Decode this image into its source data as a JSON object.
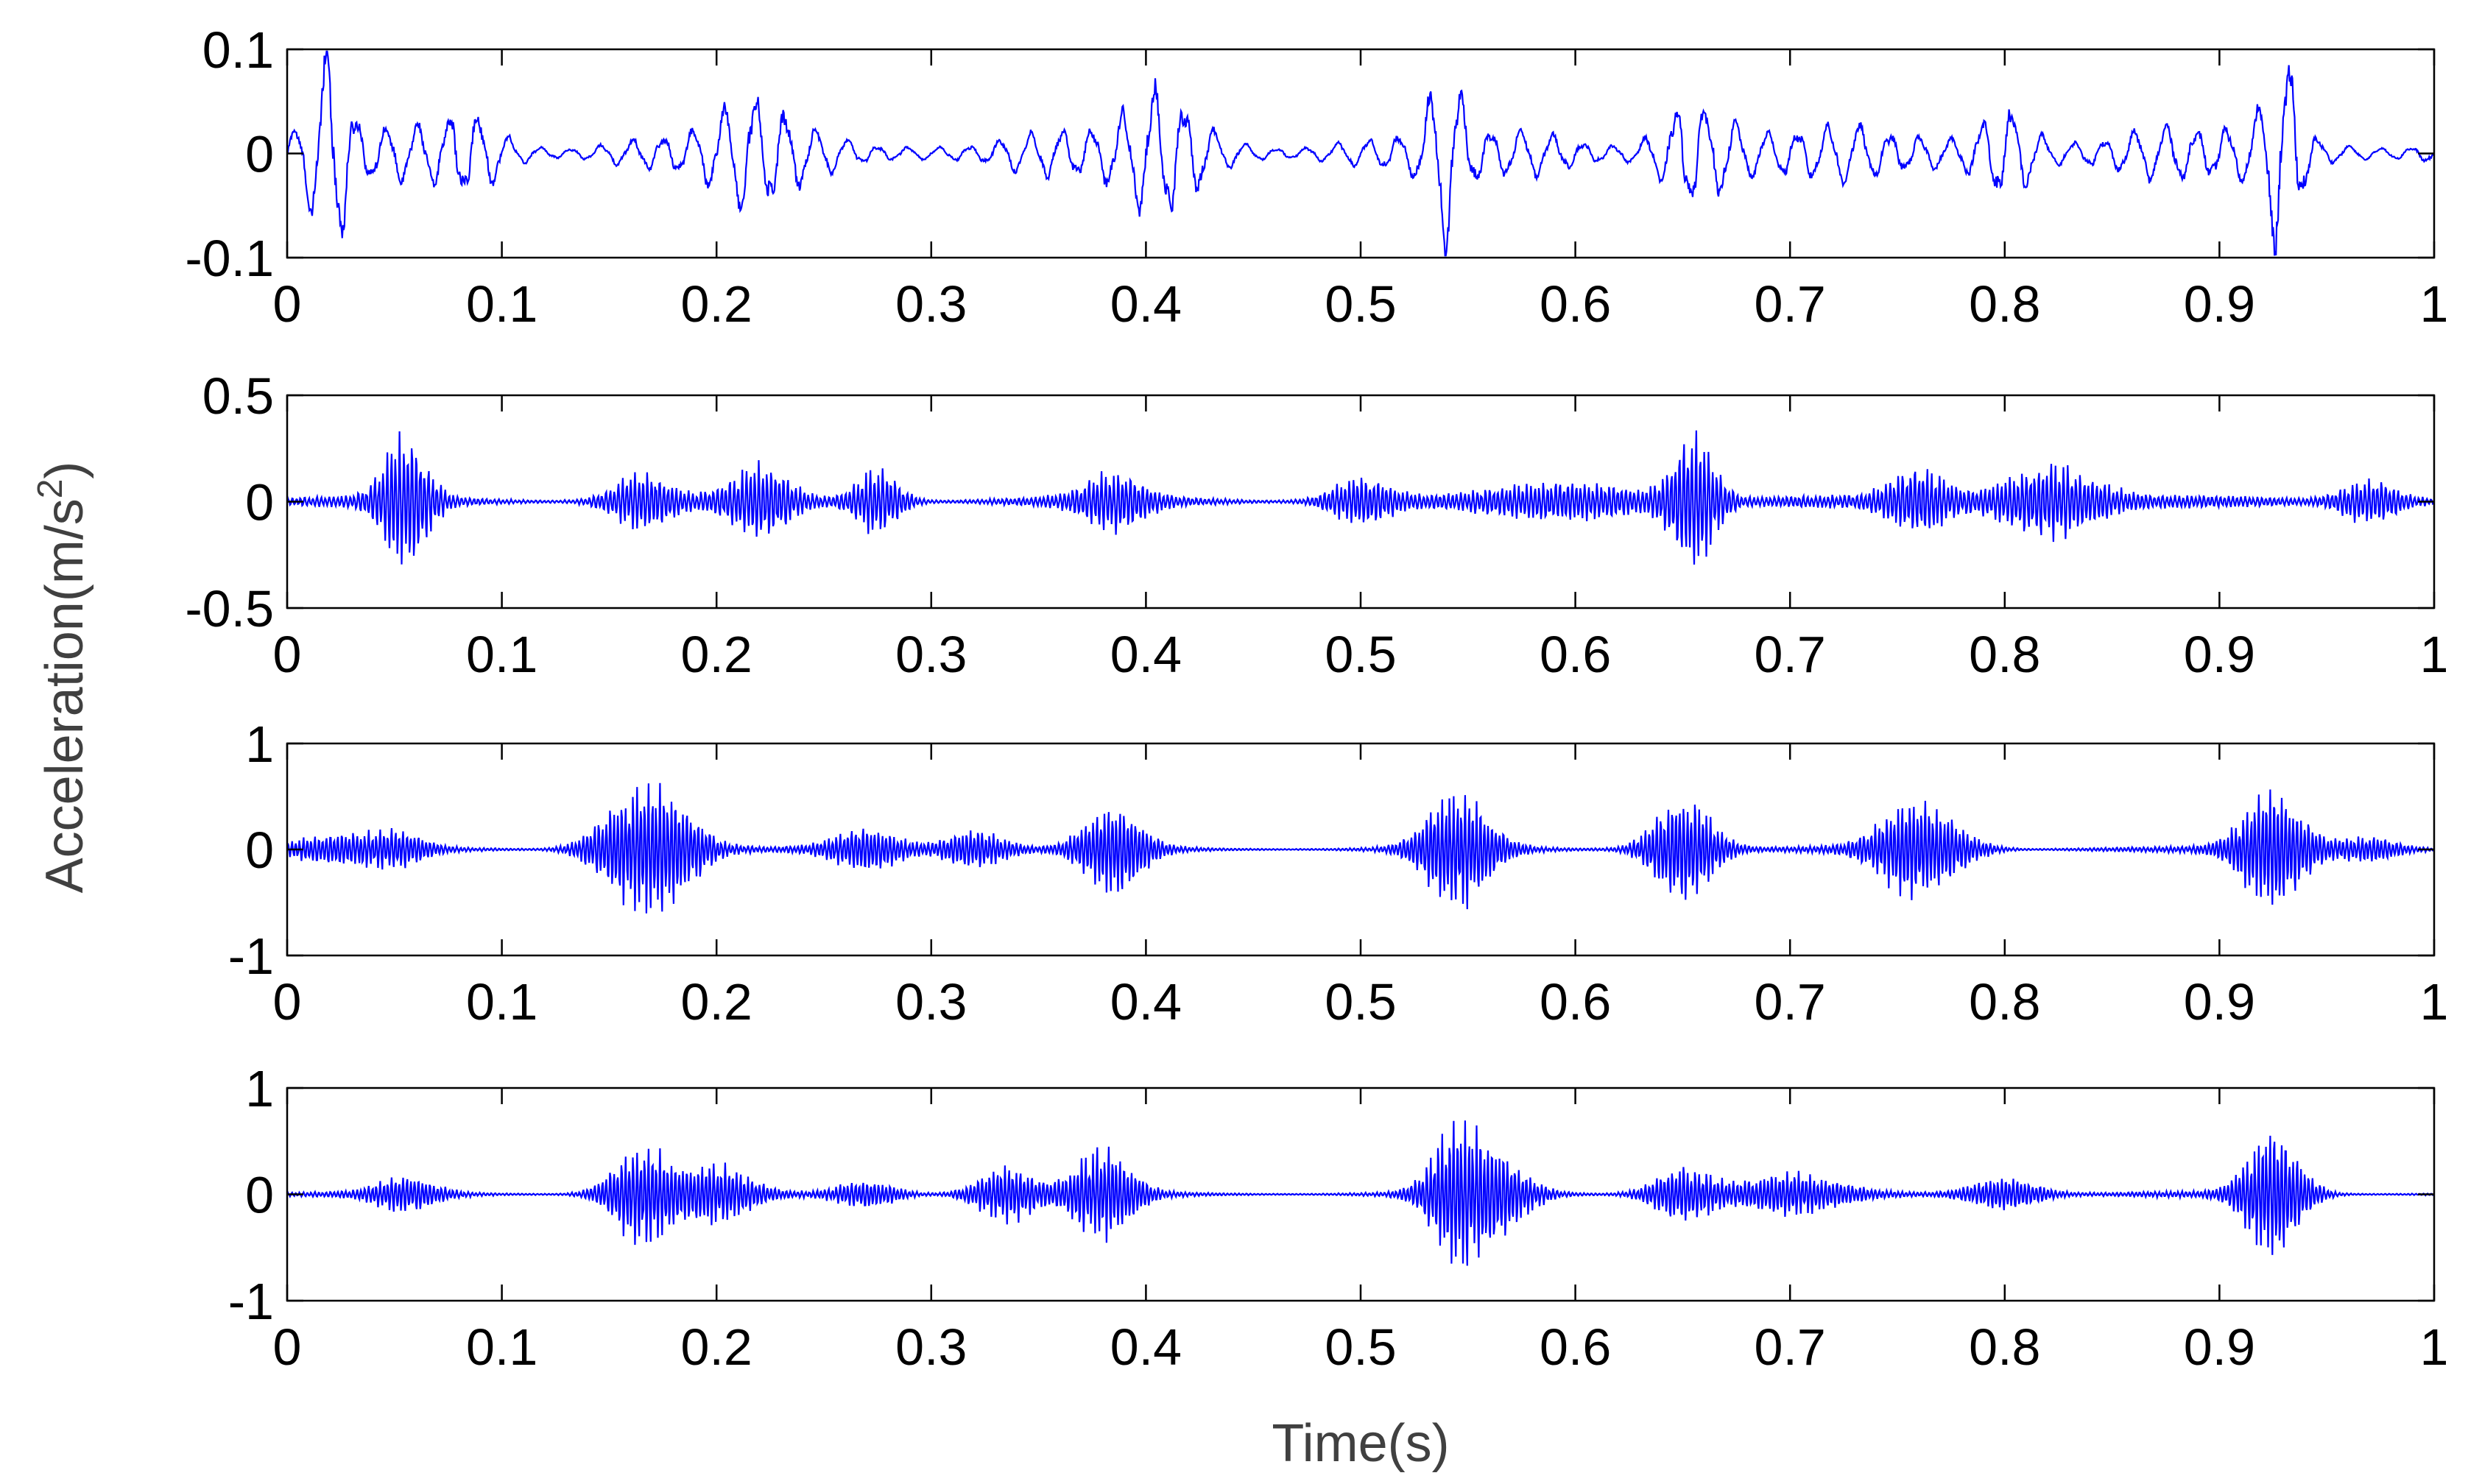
{
  "figure": {
    "ylabel": "Acceleration(m/s",
    "ylabel_sup": "2",
    "ylabel_close": ")",
    "xlabel": "Time(s)"
  },
  "colors": {
    "signal": "#0000ff",
    "axes": "#000000",
    "label": "#404040"
  },
  "chart_data": [
    {
      "type": "line",
      "xlim": [
        0,
        1
      ],
      "ylim": [
        -0.1,
        0.1
      ],
      "xticks": [
        "0",
        "0.1",
        "0.2",
        "0.3",
        "0.4",
        "0.5",
        "0.6",
        "0.7",
        "0.8",
        "0.9",
        "1"
      ],
      "yticks": [
        {
          "v": 0.1,
          "label": "0.1"
        },
        {
          "v": 0,
          "label": "0"
        },
        {
          "v": -0.1,
          "label": "-0.1"
        }
      ],
      "carrier": 70,
      "base": 0.03,
      "bursts": [
        {
          "t": 0.02,
          "a": 0.09,
          "w": 0.007
        },
        {
          "t": 0.085,
          "a": 0.035,
          "w": 0.01
        },
        {
          "t": 0.22,
          "a": 0.04,
          "w": 0.012
        },
        {
          "t": 0.41,
          "a": 0.055,
          "w": 0.012
        },
        {
          "t": 0.54,
          "a": 0.07,
          "w": 0.006
        },
        {
          "t": 0.655,
          "a": 0.055,
          "w": 0.012
        },
        {
          "t": 0.8,
          "a": 0.05,
          "w": 0.01
        },
        {
          "t": 0.93,
          "a": 0.095,
          "w": 0.007
        }
      ]
    },
    {
      "type": "line",
      "xlim": [
        0,
        1
      ],
      "ylim": [
        -0.5,
        0.5
      ],
      "xticks": [
        "0",
        "0.1",
        "0.2",
        "0.3",
        "0.4",
        "0.5",
        "0.6",
        "0.7",
        "0.8",
        "0.9",
        "1"
      ],
      "yticks": [
        {
          "v": 0.5,
          "label": "0.5"
        },
        {
          "v": 0,
          "label": "0"
        },
        {
          "v": -0.5,
          "label": "-0.5"
        }
      ],
      "carrier": 520,
      "base": 0.03,
      "bursts": [
        {
          "t": 0.055,
          "a": 0.3,
          "w": 0.009
        },
        {
          "t": 0.165,
          "a": 0.12,
          "w": 0.012
        },
        {
          "t": 0.22,
          "a": 0.15,
          "w": 0.012
        },
        {
          "t": 0.275,
          "a": 0.15,
          "w": 0.009
        },
        {
          "t": 0.385,
          "a": 0.12,
          "w": 0.012
        },
        {
          "t": 0.5,
          "a": 0.1,
          "w": 0.012
        },
        {
          "t": 0.6,
          "a": 0.08,
          "w": 0.03
        },
        {
          "t": 0.655,
          "a": 0.3,
          "w": 0.009
        },
        {
          "t": 0.76,
          "a": 0.14,
          "w": 0.012
        },
        {
          "t": 0.82,
          "a": 0.17,
          "w": 0.02
        },
        {
          "t": 0.97,
          "a": 0.1,
          "w": 0.012
        }
      ]
    },
    {
      "type": "line",
      "xlim": [
        0,
        1
      ],
      "ylim": [
        -1,
        1
      ],
      "xticks": [
        "0",
        "0.1",
        "0.2",
        "0.3",
        "0.4",
        "0.5",
        "0.6",
        "0.7",
        "0.8",
        "0.9",
        "1"
      ],
      "yticks": [
        {
          "v": 1,
          "label": "1"
        },
        {
          "v": 0,
          "label": "0"
        },
        {
          "v": -1,
          "label": "-1"
        }
      ],
      "carrier": 560,
      "base": 0.03,
      "bursts": [
        {
          "t": 0.02,
          "a": 0.12,
          "w": 0.015
        },
        {
          "t": 0.05,
          "a": 0.15,
          "w": 0.012
        },
        {
          "t": 0.16,
          "a": 0.45,
          "w": 0.014
        },
        {
          "t": 0.18,
          "a": 0.35,
          "w": 0.012
        },
        {
          "t": 0.27,
          "a": 0.2,
          "w": 0.014
        },
        {
          "t": 0.32,
          "a": 0.18,
          "w": 0.012
        },
        {
          "t": 0.385,
          "a": 0.4,
          "w": 0.012
        },
        {
          "t": 0.545,
          "a": 0.55,
          "w": 0.013
        },
        {
          "t": 0.65,
          "a": 0.5,
          "w": 0.012
        },
        {
          "t": 0.76,
          "a": 0.45,
          "w": 0.016
        },
        {
          "t": 0.925,
          "a": 0.55,
          "w": 0.013
        },
        {
          "t": 0.97,
          "a": 0.12,
          "w": 0.012
        }
      ]
    },
    {
      "type": "line",
      "xlim": [
        0,
        1
      ],
      "ylim": [
        -1,
        1
      ],
      "xticks": [
        "0",
        "0.1",
        "0.2",
        "0.3",
        "0.4",
        "0.5",
        "0.6",
        "0.7",
        "0.8",
        "0.9",
        "1"
      ],
      "yticks": [
        {
          "v": 1,
          "label": "1"
        },
        {
          "v": 0,
          "label": "0"
        },
        {
          "v": -1,
          "label": "-1"
        }
      ],
      "carrier": 560,
      "base": 0.03,
      "bursts": [
        {
          "t": 0.055,
          "a": 0.15,
          "w": 0.012
        },
        {
          "t": 0.165,
          "a": 0.45,
          "w": 0.012
        },
        {
          "t": 0.2,
          "a": 0.25,
          "w": 0.014
        },
        {
          "t": 0.27,
          "a": 0.12,
          "w": 0.012
        },
        {
          "t": 0.335,
          "a": 0.25,
          "w": 0.012
        },
        {
          "t": 0.38,
          "a": 0.4,
          "w": 0.012
        },
        {
          "t": 0.545,
          "a": 0.6,
          "w": 0.011
        },
        {
          "t": 0.565,
          "a": 0.3,
          "w": 0.012
        },
        {
          "t": 0.65,
          "a": 0.25,
          "w": 0.012
        },
        {
          "t": 0.7,
          "a": 0.18,
          "w": 0.02
        },
        {
          "t": 0.8,
          "a": 0.15,
          "w": 0.014
        },
        {
          "t": 0.925,
          "a": 0.6,
          "w": 0.011
        }
      ]
    }
  ]
}
